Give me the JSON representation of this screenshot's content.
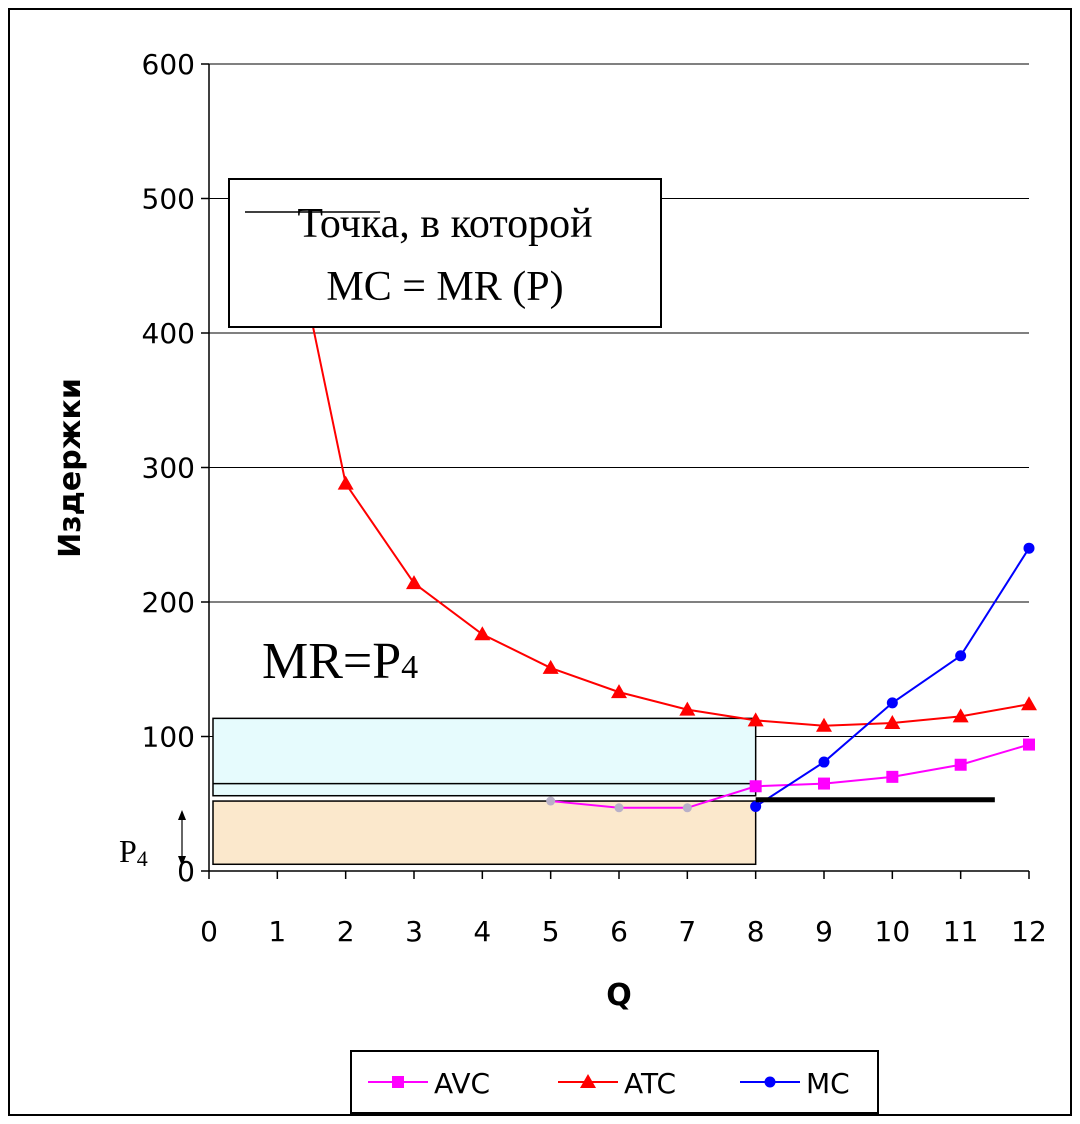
{
  "chart_data": {
    "type": "line",
    "xlabel": "Q",
    "ylabel": "Издержки",
    "x": [
      0,
      1,
      2,
      3,
      4,
      5,
      6,
      7,
      8,
      9,
      10,
      11,
      12
    ],
    "x_tick_labels": [
      "0",
      "1",
      "2",
      "3",
      "4",
      "5",
      "6",
      "7",
      "8",
      "9",
      "10",
      "11",
      "12"
    ],
    "y_tick_labels": [
      "0",
      "100",
      "200",
      "300",
      "400",
      "500",
      "600"
    ],
    "xlim": [
      0,
      12
    ],
    "ylim": [
      0,
      600
    ],
    "grid": "horizontal",
    "legend_position": "bottom",
    "series": [
      {
        "name": "AVC",
        "color": "#ff00ff",
        "marker": "square",
        "points": [
          [
            5,
            52
          ],
          [
            6,
            47
          ],
          [
            7,
            47
          ],
          [
            8,
            63
          ],
          [
            9,
            65
          ],
          [
            10,
            70
          ],
          [
            11,
            79
          ],
          [
            12,
            94
          ]
        ]
      },
      {
        "name": "ATC",
        "color": "#ff0000",
        "marker": "triangle",
        "points": [
          [
            1.5,
            410
          ],
          [
            2,
            288
          ],
          [
            3,
            214
          ],
          [
            4,
            176
          ],
          [
            5,
            151
          ],
          [
            6,
            133
          ],
          [
            7,
            120
          ],
          [
            8,
            112
          ],
          [
            9,
            108
          ],
          [
            10,
            110
          ],
          [
            11,
            115
          ],
          [
            12,
            124
          ]
        ]
      },
      {
        "name": "MC",
        "color": "#0000ff",
        "marker": "circle",
        "points": [
          [
            8,
            48
          ],
          [
            9,
            81
          ],
          [
            10,
            125
          ],
          [
            11,
            160
          ],
          [
            12,
            240
          ]
        ]
      }
    ],
    "price_line": {
      "y": 53,
      "x_start": 8,
      "x_end": 11.5,
      "color": "#000000"
    },
    "profit_rect": {
      "x0": 0,
      "x1": 8,
      "y0": 53,
      "y1": 112,
      "fill": "#e6fbfd"
    },
    "avc_band_line": {
      "y": 65
    },
    "cost_rect": {
      "x0": 0,
      "x1": 8,
      "y0": 5,
      "y1": 52,
      "fill": "#fbe8cc"
    },
    "annotations": {
      "callout_line1": "Точка, в которой",
      "callout_line2": "MC = MR (P)",
      "mr_label_main": "MR=P",
      "mr_label_sub": "4",
      "p_label_main": "P",
      "p_label_sub": "4"
    }
  }
}
